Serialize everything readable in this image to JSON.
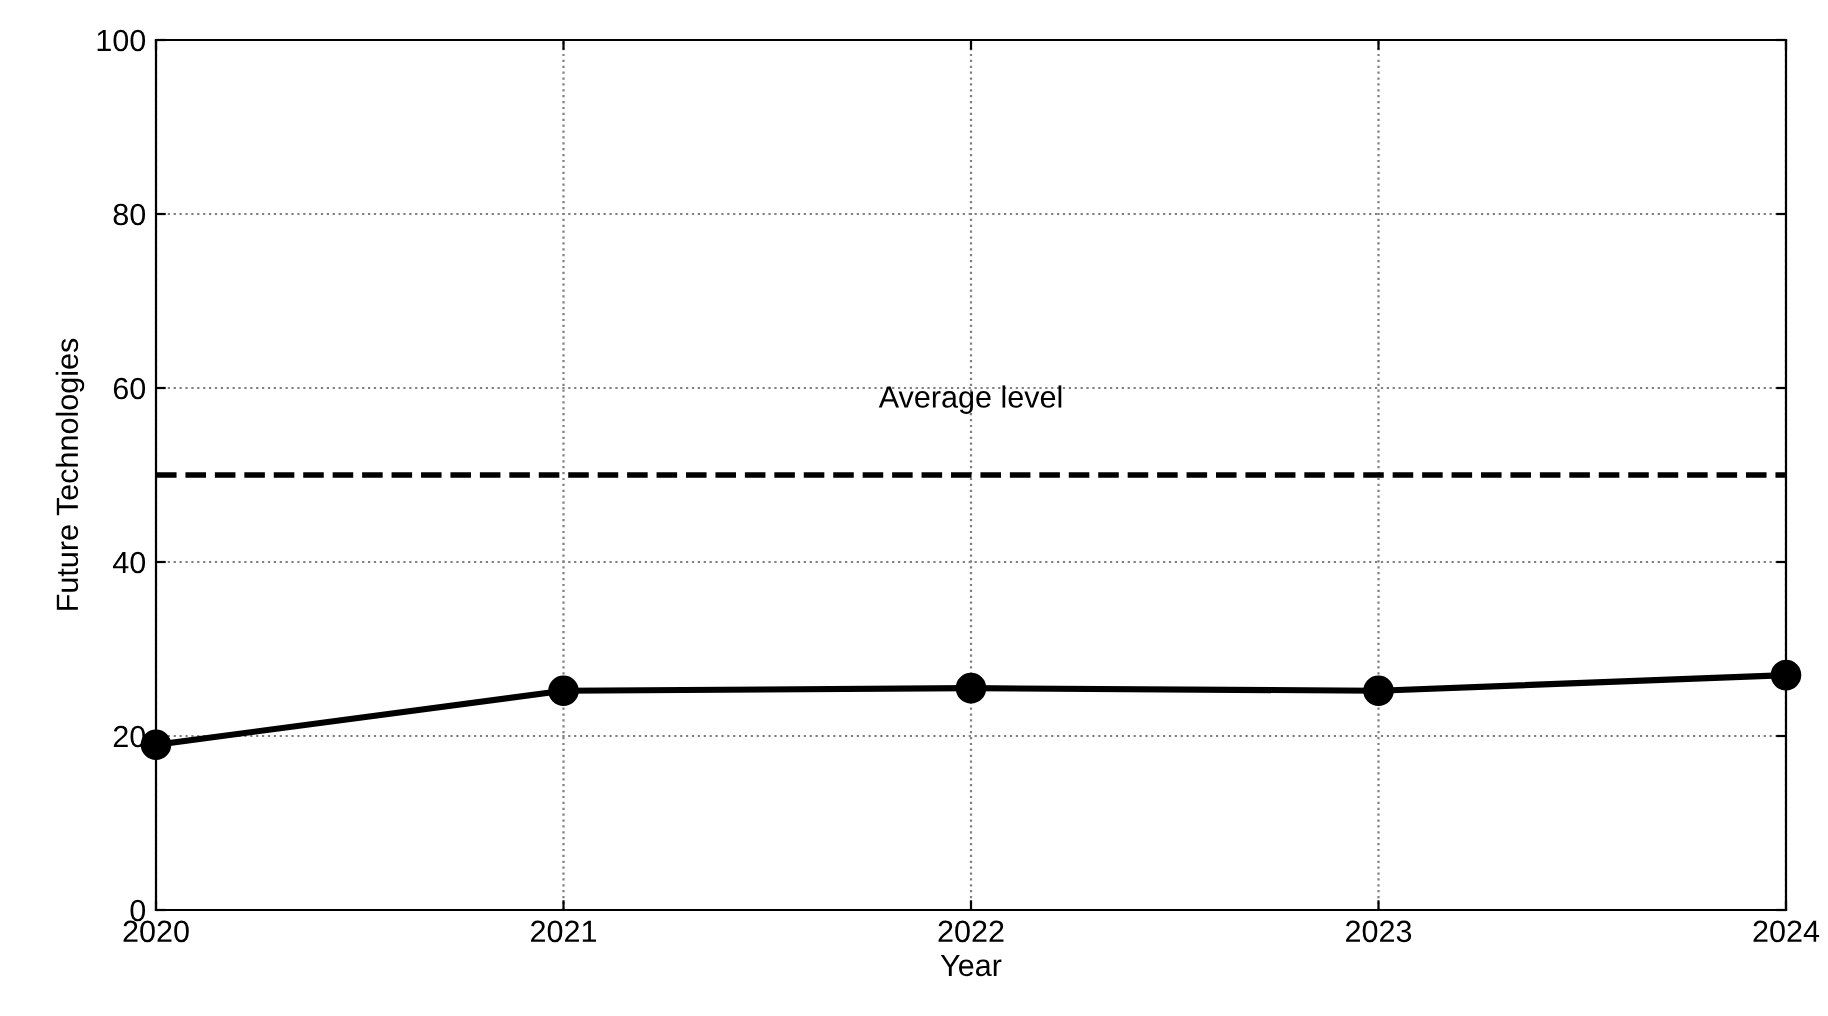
{
  "chart_data": {
    "type": "line",
    "xlabel": "Year",
    "ylabel": "Future Technologies",
    "x": [
      2020,
      2021,
      2022,
      2023,
      2024
    ],
    "series": [
      {
        "color": "#000000",
        "values": [
          19,
          25.2,
          25.5,
          25.2,
          27
        ]
      }
    ],
    "xlim": [
      2020,
      2024
    ],
    "xticks": [
      2020,
      2021,
      2022,
      2023,
      2024
    ],
    "ylim": [
      0,
      100
    ],
    "yticks": [
      0,
      20,
      40,
      60,
      80,
      100
    ],
    "ref_lines": [
      {
        "axis": "y",
        "value": 50,
        "label": "Average level",
        "color": "#000000",
        "line_style": "dashed"
      }
    ],
    "grid": true,
    "marker": "circle",
    "line_style": "solid"
  }
}
